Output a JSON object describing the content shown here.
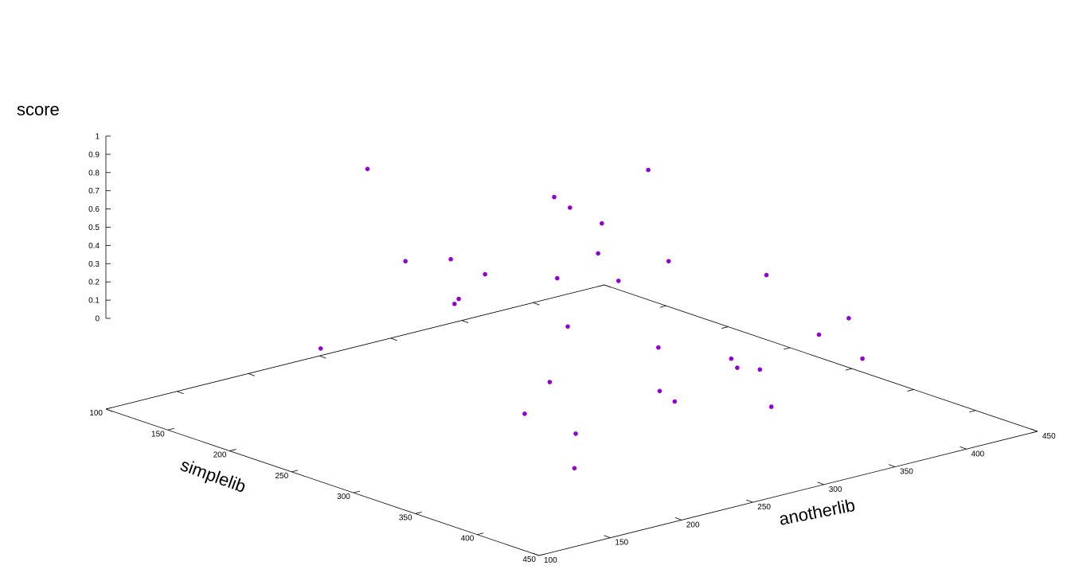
{
  "chart_data": {
    "type": "scatter",
    "title": "",
    "xlabel": "anotherlib",
    "ylabel": "simplelib",
    "zlabel": "score",
    "xlim": [
      100,
      450
    ],
    "ylim": [
      100,
      450
    ],
    "zlim": [
      0,
      1
    ],
    "x_ticks": [
      "100",
      "150",
      "200",
      "250",
      "300",
      "350",
      "400",
      "450"
    ],
    "y_ticks": [
      "100",
      "150",
      "200",
      "250",
      "300",
      "350",
      "400",
      "450"
    ],
    "z_ticks": [
      "0",
      "0.1",
      "0.2",
      "0.3",
      "0.4",
      "0.5",
      "0.6",
      "0.7",
      "0.8",
      "0.9",
      "1"
    ],
    "grid": false,
    "point_color": "#9400d3",
    "points": [
      {
        "x": 183,
        "y": 178,
        "z": 0.35
      },
      {
        "x": 400,
        "y": 355,
        "z": 0.5
      },
      {
        "x": 210,
        "y": 352,
        "z": 0.04
      },
      {
        "x": 180,
        "y": 250,
        "z": 1.0
      },
      {
        "x": 290,
        "y": 240,
        "z": 0.1
      },
      {
        "x": 200,
        "y": 270,
        "z": 0.8
      },
      {
        "x": 440,
        "y": 320,
        "z": 0.12
      },
      {
        "x": 320,
        "y": 220,
        "z": 0.3
      },
      {
        "x": 380,
        "y": 140,
        "z": 0.71
      },
      {
        "x": 310,
        "y": 140,
        "z": 0.26
      },
      {
        "x": 275,
        "y": 345,
        "z": 0.56
      },
      {
        "x": 420,
        "y": 170,
        "z": 0.85
      },
      {
        "x": 330,
        "y": 290,
        "z": 0.8
      },
      {
        "x": 400,
        "y": 260,
        "z": 0.06
      },
      {
        "x": 390,
        "y": 300,
        "z": 0.63
      },
      {
        "x": 275,
        "y": 205,
        "z": 0.64
      },
      {
        "x": 260,
        "y": 330,
        "z": 0.92
      },
      {
        "x": 315,
        "y": 300,
        "z": 0.14
      },
      {
        "x": 275,
        "y": 110,
        "z": 1.0
      },
      {
        "x": 355,
        "y": 335,
        "z": 0.26
      },
      {
        "x": 330,
        "y": 200,
        "z": 0.5
      },
      {
        "x": 350,
        "y": 210,
        "z": 0.62
      },
      {
        "x": 370,
        "y": 190,
        "z": 0.7
      },
      {
        "x": 365,
        "y": 170,
        "z": 0.75
      },
      {
        "x": 300,
        "y": 380,
        "z": 0.48
      },
      {
        "x": 350,
        "y": 350,
        "z": 0.1
      },
      {
        "x": 230,
        "y": 330,
        "z": 0.14
      },
      {
        "x": 255,
        "y": 260,
        "z": 0.04
      },
      {
        "x": 290,
        "y": 160,
        "z": 0.59
      },
      {
        "x": 340,
        "y": 400,
        "z": 0.63
      },
      {
        "x": 230,
        "y": 410,
        "z": 0.5
      }
    ]
  }
}
